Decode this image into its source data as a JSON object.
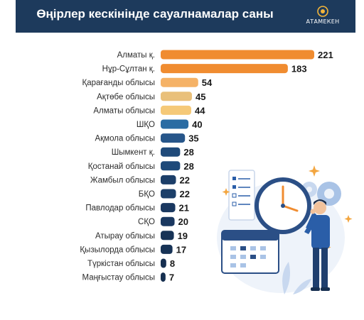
{
  "header": {
    "title": "Өңірлер кескінінде сауалнамалар саны",
    "logo_text": "АТАМЕКЕН",
    "bg_color": "#1d3a5c"
  },
  "chart_data": {
    "type": "bar",
    "orientation": "horizontal",
    "categories": [
      "Алматы қ.",
      "Нұр-Сұлтан қ.",
      "Қарағанды облысы",
      "Ақтөбе облысы",
      "Алматы облысы",
      "ШҚО",
      "Ақмола облысы",
      "Шымкент қ.",
      "Қостанай облысы",
      "Жамбыл облысы",
      "БҚО",
      "Павлодар облысы",
      "СҚО",
      "Атырау облысы",
      "Қызылорда облысы",
      "Түркістан облысы",
      "Маңғыстау облысы"
    ],
    "values": [
      221,
      183,
      54,
      45,
      44,
      40,
      35,
      28,
      28,
      22,
      22,
      21,
      20,
      19,
      17,
      8,
      7
    ],
    "colors": [
      "#f08c30",
      "#f08c30",
      "#f5b266",
      "#e9c07a",
      "#f5c978",
      "#2a6ca3",
      "#27568a",
      "#1f4a7a",
      "#1f4a7a",
      "#1c3f69",
      "#1c3f69",
      "#1a3860",
      "#1a3860",
      "#173356",
      "#173356",
      "#162f50",
      "#162f50"
    ],
    "xlim": [
      0,
      221
    ],
    "grid": false
  },
  "illustration": {
    "clock-icon": "clock",
    "calendar-icon": "calendar",
    "person-icon": "businessman"
  }
}
